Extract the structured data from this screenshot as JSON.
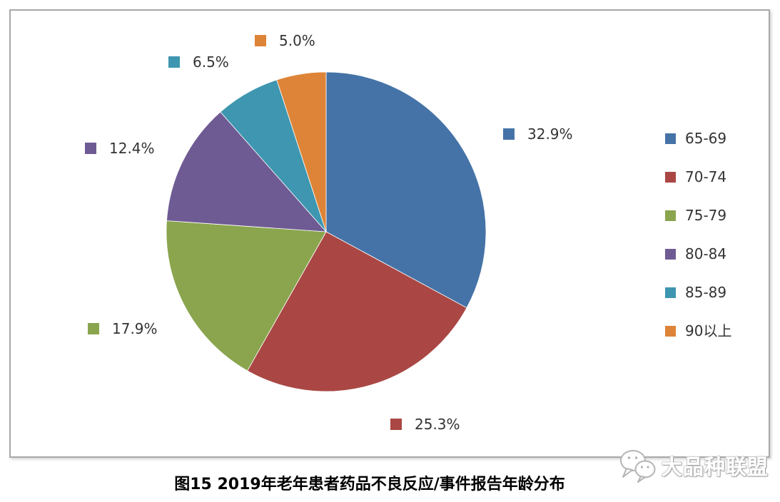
{
  "chart_data": {
    "type": "pie",
    "title": "图15 2019年老年患者药品不良反应/事件报告年龄分布",
    "categories": [
      "65-69",
      "70-74",
      "75-79",
      "80-84",
      "85-89",
      "90以上"
    ],
    "values": [
      32.9,
      25.3,
      17.9,
      12.4,
      6.5,
      5.0
    ],
    "data_labels": [
      "32.9%",
      "25.3%",
      "17.9%",
      "12.4%",
      "6.5%",
      "5.0%"
    ],
    "colors": [
      "#4573A7",
      "#AA4744",
      "#8AA54E",
      "#6F5B93",
      "#3E96B0",
      "#DE8438"
    ],
    "start_angle_deg": 0,
    "direction": "clockwise",
    "legend_position": "right",
    "grid": false
  },
  "watermark": {
    "text": "大品种联盟",
    "icon": "wechat-chat-bubbles-icon"
  }
}
